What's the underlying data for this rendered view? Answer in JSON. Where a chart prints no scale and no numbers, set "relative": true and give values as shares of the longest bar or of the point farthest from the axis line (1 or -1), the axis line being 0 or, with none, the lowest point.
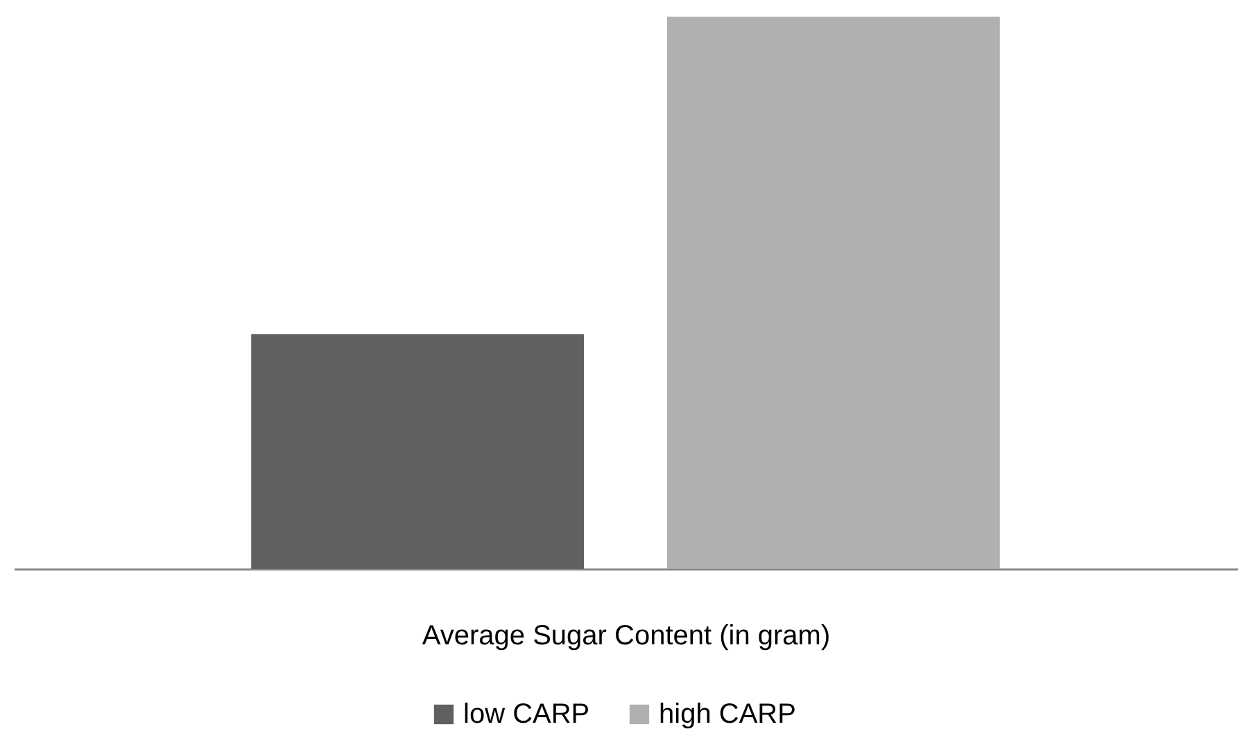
{
  "chart_data": {
    "type": "bar",
    "relative": true,
    "categories": [
      null
    ],
    "xlabel": "Average Sugar Content (in gram)",
    "series": [
      {
        "name": "low CARP",
        "color": "#606060",
        "values": [
          0.425
        ]
      },
      {
        "name": "high CARP",
        "color": "#b0b0b0",
        "values": [
          1
        ]
      }
    ],
    "legend": "bottom",
    "grid": false
  }
}
